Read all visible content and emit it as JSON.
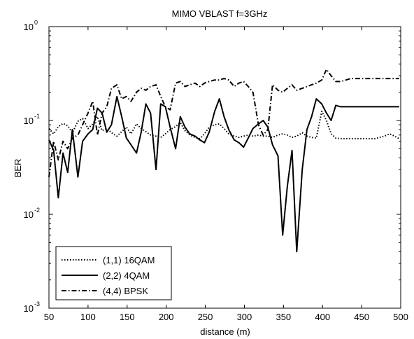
{
  "chart_data": {
    "type": "line",
    "title": "MIMO VBLAST f=3GHz",
    "xlabel": "distance (m)",
    "ylabel": "BER",
    "xlim": [
      50,
      500
    ],
    "ylim": [
      0.001,
      1
    ],
    "yscale": "log",
    "grid": false,
    "legend_position": "bottom-left",
    "x_ticks": [
      "50",
      "100",
      "150",
      "200",
      "250",
      "300",
      "350",
      "400",
      "450",
      "500"
    ],
    "y_ticks": [
      {
        "base": "10",
        "exp": "-3"
      },
      {
        "base": "10",
        "exp": "-2"
      },
      {
        "base": "10",
        "exp": "-1"
      },
      {
        "base": "10",
        "exp": "0"
      }
    ],
    "x": [
      50,
      56,
      62,
      68,
      74,
      80,
      87,
      93,
      100,
      106,
      112,
      118,
      124,
      130,
      137,
      143,
      149,
      155,
      162,
      168,
      174,
      180,
      187,
      193,
      199,
      205,
      212,
      218,
      224,
      230,
      237,
      243,
      249,
      255,
      262,
      268,
      274,
      280,
      287,
      293,
      299,
      305,
      311,
      318,
      324,
      330,
      336,
      343,
      349,
      355,
      361,
      367,
      374,
      380,
      386,
      392,
      399,
      405,
      411,
      417,
      423,
      430,
      436,
      442,
      448,
      455,
      461,
      467,
      473,
      479,
      486,
      492,
      498
    ],
    "series": [
      {
        "name": "(1,1) 16QAM",
        "style": "dotted",
        "values": [
          0.082,
          0.072,
          0.086,
          0.093,
          0.088,
          0.074,
          0.098,
          0.105,
          0.082,
          0.092,
          0.11,
          0.078,
          0.082,
          0.074,
          0.068,
          0.076,
          0.085,
          0.072,
          0.092,
          0.082,
          0.076,
          0.07,
          0.068,
          0.066,
          0.072,
          0.08,
          0.086,
          0.095,
          0.078,
          0.07,
          0.066,
          0.064,
          0.072,
          0.085,
          0.09,
          0.092,
          0.082,
          0.072,
          0.068,
          0.066,
          0.068,
          0.07,
          0.068,
          0.07,
          0.068,
          0.068,
          0.066,
          0.07,
          0.072,
          0.07,
          0.066,
          0.068,
          0.074,
          0.068,
          0.066,
          0.065,
          0.125,
          0.1,
          0.072,
          0.065,
          0.064,
          0.064,
          0.064,
          0.064,
          0.064,
          0.064,
          0.064,
          0.064,
          0.066,
          0.068,
          0.072,
          0.068,
          0.064
        ]
      },
      {
        "name": "(2,2) 4QAM",
        "style": "solid",
        "values": [
          0.062,
          0.048,
          0.015,
          0.045,
          0.028,
          0.08,
          0.025,
          0.06,
          0.072,
          0.08,
          0.135,
          0.12,
          0.075,
          0.09,
          0.18,
          0.11,
          0.065,
          0.055,
          0.045,
          0.075,
          0.15,
          0.12,
          0.03,
          0.15,
          0.14,
          0.085,
          0.05,
          0.11,
          0.085,
          0.072,
          0.068,
          0.062,
          0.058,
          0.075,
          0.125,
          0.17,
          0.11,
          0.08,
          0.062,
          0.058,
          0.052,
          0.065,
          0.082,
          0.092,
          0.1,
          0.085,
          0.055,
          0.042,
          0.006,
          0.02,
          0.048,
          0.004,
          0.03,
          0.08,
          0.11,
          0.17,
          0.15,
          0.12,
          0.1,
          0.145,
          0.14,
          0.14,
          0.14,
          0.14,
          0.14,
          0.14,
          0.14,
          0.14,
          0.14,
          0.14,
          0.14,
          0.14,
          0.14
        ]
      },
      {
        "name": "(4,4) BPSK",
        "style": "dashdot",
        "values": [
          0.025,
          0.06,
          0.038,
          0.06,
          0.05,
          0.065,
          0.07,
          0.09,
          0.12,
          0.16,
          0.07,
          0.12,
          0.14,
          0.22,
          0.24,
          0.17,
          0.18,
          0.16,
          0.2,
          0.22,
          0.21,
          0.23,
          0.24,
          0.18,
          0.14,
          0.13,
          0.25,
          0.26,
          0.23,
          0.24,
          0.25,
          0.23,
          0.25,
          0.26,
          0.27,
          0.27,
          0.28,
          0.27,
          0.23,
          0.25,
          0.26,
          0.23,
          0.2,
          0.09,
          0.07,
          0.08,
          0.24,
          0.21,
          0.2,
          0.22,
          0.24,
          0.21,
          0.22,
          0.23,
          0.24,
          0.25,
          0.27,
          0.35,
          0.3,
          0.26,
          0.26,
          0.27,
          0.28,
          0.28,
          0.28,
          0.28,
          0.28,
          0.28,
          0.28,
          0.28,
          0.28,
          0.28,
          0.28
        ]
      }
    ]
  }
}
